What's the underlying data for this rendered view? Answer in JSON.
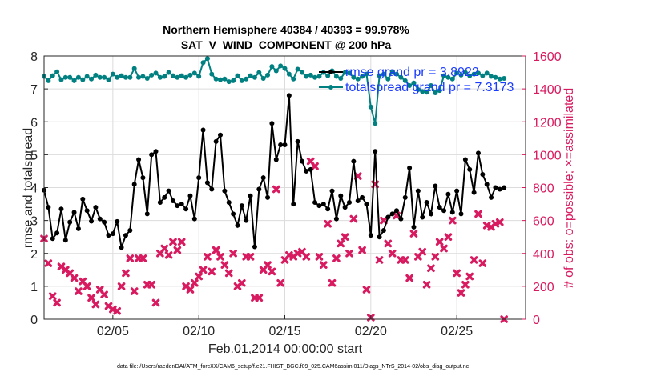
{
  "chart_data": {
    "type": "line",
    "title": "Northern Hemisphere 40384 / 40393 = 99.978%",
    "subtitle": "SAT_V_WIND_COMPONENT @ 200 hPa",
    "xlabel": "Feb.01,2014 00:00:00 start",
    "ylabel": "rmse and totalspread",
    "ylabel_right": "# of obs: o=possible; ×=assimilated",
    "footnote": "data file: /Users/raeder/DAI/ATM_forcXX/CAM6_setup/f.e21.FHIST_BGC.f09_025.CAM6assim.011/Diags_NTrS_2014-02/obs_diag_output.nc",
    "x_ticks": [
      "02/05",
      "02/10",
      "02/15",
      "02/20",
      "02/25"
    ],
    "x_tick_days": [
      5,
      10,
      15,
      20,
      25
    ],
    "xlim": [
      1,
      29
    ],
    "ylim": [
      0,
      8
    ],
    "y_ticks": [
      0,
      1,
      2,
      3,
      4,
      5,
      6,
      7,
      8
    ],
    "ylim_right": [
      0,
      1600
    ],
    "y_ticks_right": [
      0,
      200,
      400,
      600,
      800,
      1000,
      1200,
      1400,
      1600
    ],
    "grid": true,
    "legend_position": "top-right",
    "colors": {
      "rmse": "#000000",
      "totalspread": "#008080",
      "obs": "#d81b60",
      "right_axis": "#d81b60",
      "legend_text": "#1a3cff"
    },
    "x_start_day": 1.0,
    "x_step_days": 0.25,
    "series": [
      {
        "name": "rmse grand pr = 3.8922",
        "axis": "left",
        "values": [
          3.92,
          3.4,
          2.45,
          2.62,
          3.35,
          2.4,
          2.95,
          3.25,
          2.75,
          3.65,
          3.3,
          2.98,
          3.4,
          3.05,
          2.95,
          2.55,
          2.6,
          2.97,
          2.18,
          2.55,
          2.7,
          4.1,
          4.85,
          4.3,
          3.2,
          5.0,
          5.1,
          3.55,
          3.7,
          3.9,
          3.6,
          3.45,
          3.5,
          3.35,
          3.75,
          3.05,
          4.3,
          5.75,
          4.15,
          3.95,
          5.4,
          5.6,
          3.9,
          3.55,
          3.2,
          2.85,
          3.45,
          3.0,
          3.75,
          2.2,
          3.95,
          4.3,
          3.7,
          5.95,
          4.85,
          5.3,
          5.3,
          6.8,
          3.5,
          5.4,
          4.8,
          4.5,
          4.55,
          3.55,
          3.45,
          3.5,
          3.35,
          3.9,
          3.05,
          3.75,
          3.4,
          3.55,
          4.8,
          3.6,
          3.7,
          3.5,
          2.55,
          5.1,
          2.5,
          2.7,
          3.1,
          3.2,
          3.3,
          3.05,
          3.7,
          4.6,
          2.8,
          3.9,
          3.1,
          3.55,
          3.2,
          4.05,
          3.4,
          3.3,
          3.8,
          3.25,
          3.9,
          3.2,
          4.85,
          4.55,
          3.85,
          5.05,
          4.4,
          4.1,
          3.7,
          4.0,
          3.95,
          4.0
        ]
      },
      {
        "name": "totalspread grand pr = 7.3173",
        "axis": "left",
        "values": [
          7.38,
          7.25,
          7.4,
          7.52,
          7.28,
          7.35,
          7.35,
          7.25,
          7.35,
          7.28,
          7.38,
          7.3,
          7.42,
          7.35,
          7.35,
          7.28,
          7.45,
          7.35,
          7.4,
          7.35,
          7.35,
          7.62,
          7.35,
          7.38,
          7.32,
          7.42,
          7.48,
          7.35,
          7.38,
          7.5,
          7.4,
          7.35,
          7.4,
          7.35,
          7.42,
          7.48,
          7.38,
          7.8,
          7.92,
          7.45,
          7.3,
          7.28,
          7.3,
          7.22,
          7.25,
          7.4,
          7.25,
          7.3,
          7.4,
          7.35,
          7.5,
          7.32,
          7.42,
          7.68,
          7.55,
          7.7,
          7.62,
          7.45,
          7.3,
          7.6,
          7.5,
          7.38,
          7.42,
          7.35,
          7.38,
          7.5,
          7.4,
          7.55,
          7.38,
          7.32,
          7.5,
          7.48,
          7.35,
          7.3,
          7.38,
          7.45,
          6.45,
          5.95,
          7.4,
          7.45,
          7.3,
          7.52,
          7.45,
          7.35,
          7.25,
          7.1,
          7.18,
          6.98,
          6.92,
          6.9,
          7.1,
          6.88,
          6.95,
          7.4,
          7.35,
          7.3,
          7.48,
          7.42,
          7.5,
          7.4,
          7.45,
          7.48,
          7.4,
          7.48,
          7.38,
          7.35,
          7.3,
          7.32
        ]
      },
      {
        "name": "# of obs",
        "axis": "right",
        "values": [
          490,
          340,
          140,
          100,
          320,
          300,
          280,
          250,
          170,
          230,
          200,
          130,
          90,
          180,
          150,
          80,
          60,
          50,
          200,
          280,
          370,
          170,
          370,
          370,
          210,
          210,
          100,
          400,
          430,
          390,
          470,
          420,
          470,
          200,
          180,
          220,
          260,
          300,
          380,
          290,
          420,
          380,
          330,
          280,
          400,
          200,
          220,
          380,
          380,
          130,
          130,
          300,
          330,
          290,
          790,
          220,
          360,
          390,
          380,
          400,
          410,
          380,
          960,
          930,
          380,
          330,
          580,
          220,
          370,
          460,
          500,
          400,
          610,
          870,
          420,
          180,
          10,
          820,
          360,
          600,
          460,
          400,
          630,
          360,
          360,
          250,
          520,
          380,
          410,
          210,
          310,
          380,
          470,
          430,
          500,
          600,
          280,
          160,
          210,
          260,
          360,
          640,
          340,
          570,
          560,
          580,
          590,
          0
        ]
      }
    ]
  }
}
